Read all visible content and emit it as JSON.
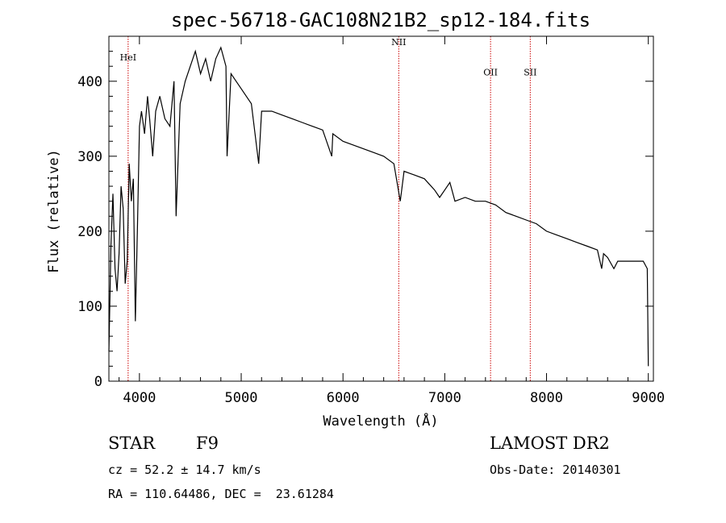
{
  "chart_data": {
    "type": "line",
    "title": "spec-56718-GAC108N21B2_sp12-184.fits",
    "xlabel": "Wavelength (Å)",
    "ylabel": "Flux (relative)",
    "xlim": [
      3700,
      9050
    ],
    "ylim": [
      0,
      460
    ],
    "xticks": [
      4000,
      5000,
      6000,
      7000,
      8000,
      9000
    ],
    "yticks": [
      0,
      100,
      200,
      300,
      400
    ],
    "grid": false,
    "line_color": "#000000",
    "marker_color": "#cc0000",
    "spectral_lines": [
      {
        "label": "HeI",
        "x": 3889,
        "label_y": 428
      },
      {
        "label": "NII",
        "x": 6548,
        "label_y": 448
      },
      {
        "label": "OII",
        "x": 7450,
        "label_y": 408
      },
      {
        "label": "SII",
        "x": 7840,
        "label_y": 408
      }
    ],
    "series": [
      {
        "x": [
          3700,
          3720,
          3740,
          3760,
          3780,
          3800,
          3820,
          3840,
          3860,
          3880,
          3900,
          3920,
          3940,
          3960,
          3980,
          4000,
          4020,
          4050,
          4080,
          4100,
          4130,
          4160,
          4200,
          4250,
          4300,
          4340,
          4360,
          4400,
          4450,
          4500,
          4550,
          4600,
          4650,
          4700,
          4750,
          4800,
          4850,
          4861,
          4900,
          4950,
          5000,
          5100,
          5172,
          5200,
          5300,
          5400,
          5500,
          5600,
          5700,
          5800,
          5890,
          5900,
          6000,
          6100,
          6200,
          6300,
          6400,
          6500,
          6563,
          6600,
          6700,
          6800,
          6900,
          6950,
          7000,
          7050,
          7100,
          7200,
          7300,
          7400,
          7500,
          7600,
          7700,
          7800,
          7900,
          8000,
          8100,
          8200,
          8300,
          8400,
          8500,
          8542,
          8560,
          8600,
          8662,
          8700,
          8800,
          8900,
          8950,
          8990,
          9000
        ],
        "y": [
          40,
          180,
          250,
          150,
          120,
          170,
          260,
          230,
          130,
          160,
          290,
          240,
          270,
          80,
          200,
          340,
          360,
          330,
          380,
          350,
          300,
          360,
          380,
          350,
          340,
          400,
          220,
          370,
          400,
          420,
          440,
          410,
          430,
          400,
          430,
          445,
          420,
          300,
          410,
          400,
          390,
          370,
          290,
          360,
          360,
          355,
          350,
          345,
          340,
          335,
          300,
          330,
          320,
          315,
          310,
          305,
          300,
          290,
          240,
          280,
          275,
          270,
          255,
          245,
          255,
          265,
          240,
          245,
          240,
          240,
          235,
          225,
          220,
          215,
          210,
          200,
          195,
          190,
          185,
          180,
          175,
          150,
          170,
          165,
          150,
          160,
          160,
          160,
          160,
          150,
          20
        ]
      }
    ]
  },
  "footer": {
    "class_label": "STAR",
    "subclass": "F9",
    "survey": "LAMOST DR2",
    "cz": "cz = 52.2 ± 14.7 km/s",
    "obs_date": "Obs-Date: 20140301",
    "coords": "RA = 110.64486, DEC =  23.61284"
  }
}
